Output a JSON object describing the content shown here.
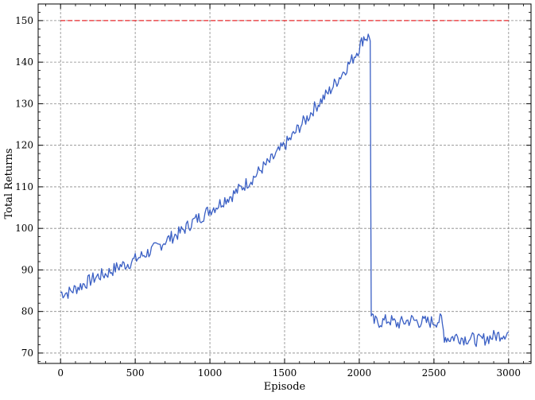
{
  "chart_data": {
    "type": "line",
    "title": "",
    "xlabel": "Episode",
    "ylabel": "Total Returns",
    "xlim": [
      -150,
      3150
    ],
    "ylim": [
      67.5,
      154
    ],
    "x_ticks": [
      0,
      500,
      1000,
      1500,
      2000,
      2500,
      3000
    ],
    "y_ticks": [
      70,
      80,
      90,
      100,
      110,
      120,
      130,
      140,
      150
    ],
    "x_tick_labels": [
      "0",
      "500",
      "1000",
      "1500",
      "2000",
      "2500",
      "3000"
    ],
    "y_tick_labels": [
      "70",
      "80",
      "90",
      "100",
      "110",
      "120",
      "130",
      "140",
      "150"
    ],
    "grid": true,
    "legend": "none",
    "series": [
      {
        "color": "#3a5fc4",
        "style": "solid",
        "x": [
          0,
          50,
          100,
          150,
          200,
          250,
          300,
          350,
          400,
          450,
          500,
          550,
          600,
          650,
          700,
          750,
          800,
          850,
          900,
          950,
          1000,
          1050,
          1100,
          1150,
          1200,
          1250,
          1300,
          1350,
          1400,
          1450,
          1500,
          1550,
          1600,
          1650,
          1700,
          1750,
          1800,
          1850,
          1900,
          1950,
          2000,
          2030,
          2060,
          2080,
          2100,
          2150,
          2200,
          2250,
          2300,
          2350,
          2400,
          2450,
          2500,
          2550,
          2570,
          2600,
          2650,
          2700,
          2750,
          2800,
          2850,
          2900,
          2950,
          3000
        ],
        "y": [
          84.5,
          84.5,
          85.5,
          86.5,
          87.5,
          88.5,
          89,
          90,
          91,
          91.5,
          92.5,
          93.5,
          94.5,
          95.5,
          97,
          98,
          99,
          100.5,
          102,
          103,
          104.5,
          105.5,
          107,
          108,
          109.5,
          111,
          112.5,
          114.5,
          116,
          118,
          120,
          122,
          124.5,
          126.5,
          129,
          131,
          133,
          135.5,
          138,
          140.5,
          143.5,
          146,
          146,
          78.5,
          77.5,
          77.5,
          78,
          77,
          77.5,
          78,
          77.5,
          77.5,
          77.5,
          78,
          74,
          73.5,
          74,
          73.5,
          73.5,
          73,
          73.5,
          74,
          74.5,
          75
        ]
      },
      {
        "color": "#e8272a",
        "style": "dashed",
        "x": [
          0,
          3000
        ],
        "y": [
          150,
          150
        ]
      }
    ]
  }
}
